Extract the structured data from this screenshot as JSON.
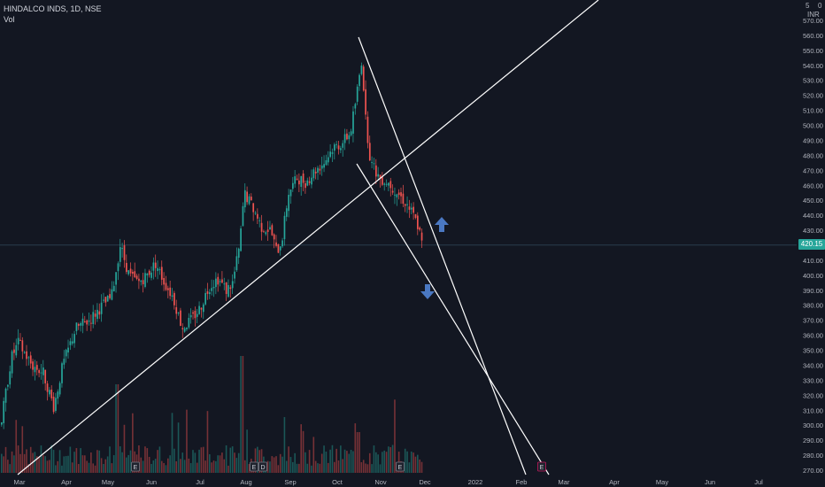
{
  "header": {
    "symbol_line": "HINDALCO INDS, 1D, NSE",
    "volume_label": "Vol"
  },
  "price_axis": {
    "currency": "INR",
    "top_values": [
      "5",
      "0"
    ],
    "ticks": [
      "570.00",
      "560.00",
      "550.00",
      "540.00",
      "530.00",
      "520.00",
      "510.00",
      "500.00",
      "490.00",
      "480.00",
      "470.00",
      "460.00",
      "450.00",
      "440.00",
      "430.00",
      "420.00",
      "410.00",
      "400.00",
      "390.00",
      "380.00",
      "370.00",
      "360.00",
      "350.00",
      "340.00",
      "330.00",
      "320.00",
      "310.00",
      "300.00",
      "290.00",
      "280.00",
      "270.00"
    ],
    "current_price": "420.15",
    "current_value": 420.15
  },
  "time_axis": {
    "labels": [
      "Mar",
      "Apr",
      "May",
      "Jun",
      "Jul",
      "Aug",
      "Sep",
      "Oct",
      "Nov",
      "Dec",
      "2022",
      "Feb",
      "Mar",
      "Apr",
      "May",
      "Jun",
      "Jul"
    ]
  },
  "event_markers": [
    "E",
    "E",
    "D",
    "E",
    "E"
  ],
  "annotations": {
    "up_arrow": "up-arrow-icon",
    "down_arrow": "down-arrow-icon"
  },
  "colors": {
    "background": "#131722",
    "up": "#26a69a",
    "down": "#ef5350",
    "line": "#ffffff",
    "arrow": "#4a78c2",
    "axis_text": "#b2b5be"
  },
  "chart_data": {
    "type": "candlestick",
    "title": "HINDALCO INDS, 1D, NSE",
    "ylim": [
      265,
      575
    ],
    "x_range": [
      "Mar",
      "Jul"
    ],
    "grid": false,
    "series": [
      {
        "name": "Vol"
      }
    ]
  }
}
